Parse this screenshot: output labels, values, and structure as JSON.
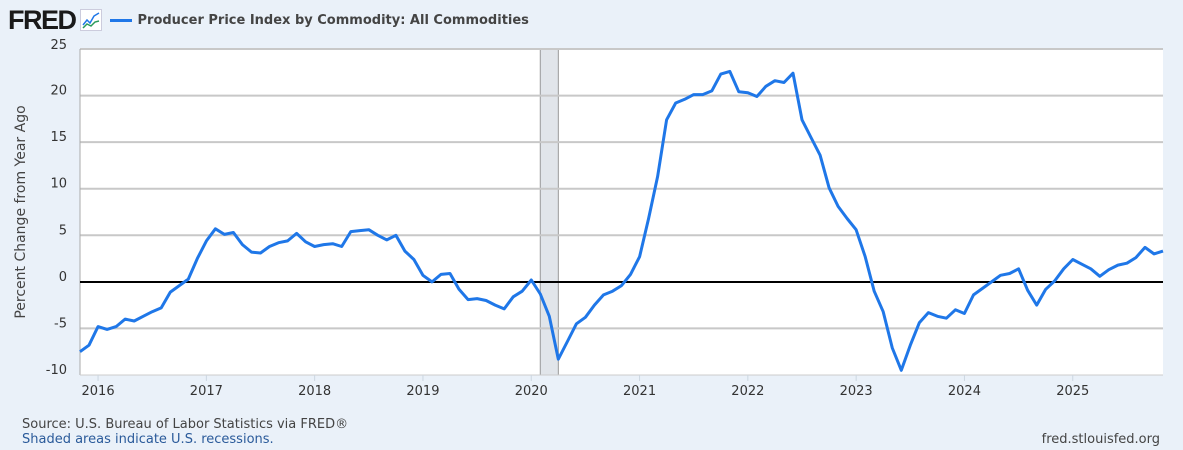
{
  "header": {
    "logo": "FRED",
    "series_title": "Producer Price Index by Commodity: All Commodities"
  },
  "footer": {
    "source": "Source: U.S. Bureau of Labor Statistics via FRED®",
    "recession_note": "Shaded areas indicate U.S. recessions.",
    "site": "fred.stlouisfed.org"
  },
  "colors": {
    "series": "#1f77e8",
    "recession": "#e1e5ea",
    "background": "#eaf1f9"
  },
  "chart_data": {
    "type": "line",
    "title": "Producer Price Index by Commodity: All Commodities",
    "ylabel": "Percent Change from Year Ago",
    "xlabel": "",
    "ylim": [
      -10,
      25
    ],
    "yticks": [
      -10,
      -5,
      0,
      5,
      10,
      15,
      20,
      25
    ],
    "xticks": [
      "2016",
      "2017",
      "2018",
      "2019",
      "2020",
      "2021",
      "2022",
      "2023",
      "2024",
      "2025"
    ],
    "xlim": [
      "2015-11",
      "2025-11"
    ],
    "grid": true,
    "zero_line": true,
    "recessions": [
      {
        "start": "2020-02",
        "end": "2020-04"
      }
    ],
    "series": [
      {
        "name": "Producer Price Index by Commodity: All Commodities",
        "start": "2015-11",
        "frequency": "monthly",
        "values": [
          -7.5,
          -6.8,
          -4.8,
          -5.1,
          -4.8,
          -4.0,
          -4.2,
          -3.7,
          -3.2,
          -2.8,
          -1.1,
          -0.4,
          0.3,
          2.5,
          4.4,
          5.7,
          5.1,
          5.3,
          4.0,
          3.2,
          3.1,
          3.8,
          4.2,
          4.4,
          5.2,
          4.3,
          3.8,
          4.0,
          4.1,
          3.8,
          5.4,
          5.5,
          5.6,
          5.0,
          4.5,
          5.0,
          3.3,
          2.4,
          0.7,
          0.0,
          0.8,
          0.9,
          -0.8,
          -1.9,
          -1.8,
          -2.0,
          -2.5,
          -2.9,
          -1.6,
          -1.0,
          0.2,
          -1.3,
          -3.7,
          -8.3,
          -6.4,
          -4.5,
          -3.8,
          -2.5,
          -1.4,
          -1.0,
          -0.4,
          0.8,
          2.7,
          6.8,
          11.3,
          17.4,
          19.2,
          19.6,
          20.1,
          20.1,
          20.5,
          22.3,
          22.6,
          20.4,
          20.3,
          19.9,
          21.0,
          21.6,
          21.4,
          22.4,
          17.4,
          15.5,
          13.6,
          10.1,
          8.1,
          6.8,
          5.6,
          2.7,
          -1.0,
          -3.2,
          -7.1,
          -9.5,
          -6.8,
          -4.4,
          -3.3,
          -3.7,
          -3.9,
          -3.0,
          -3.4,
          -1.4,
          -0.7,
          0.0,
          0.7,
          0.9,
          1.4,
          -0.9,
          -2.5,
          -0.8,
          0.1,
          1.4,
          2.4,
          1.9,
          1.4,
          0.6,
          1.3,
          1.8,
          2.0,
          2.6,
          3.7,
          3.0,
          3.3
        ]
      }
    ]
  }
}
